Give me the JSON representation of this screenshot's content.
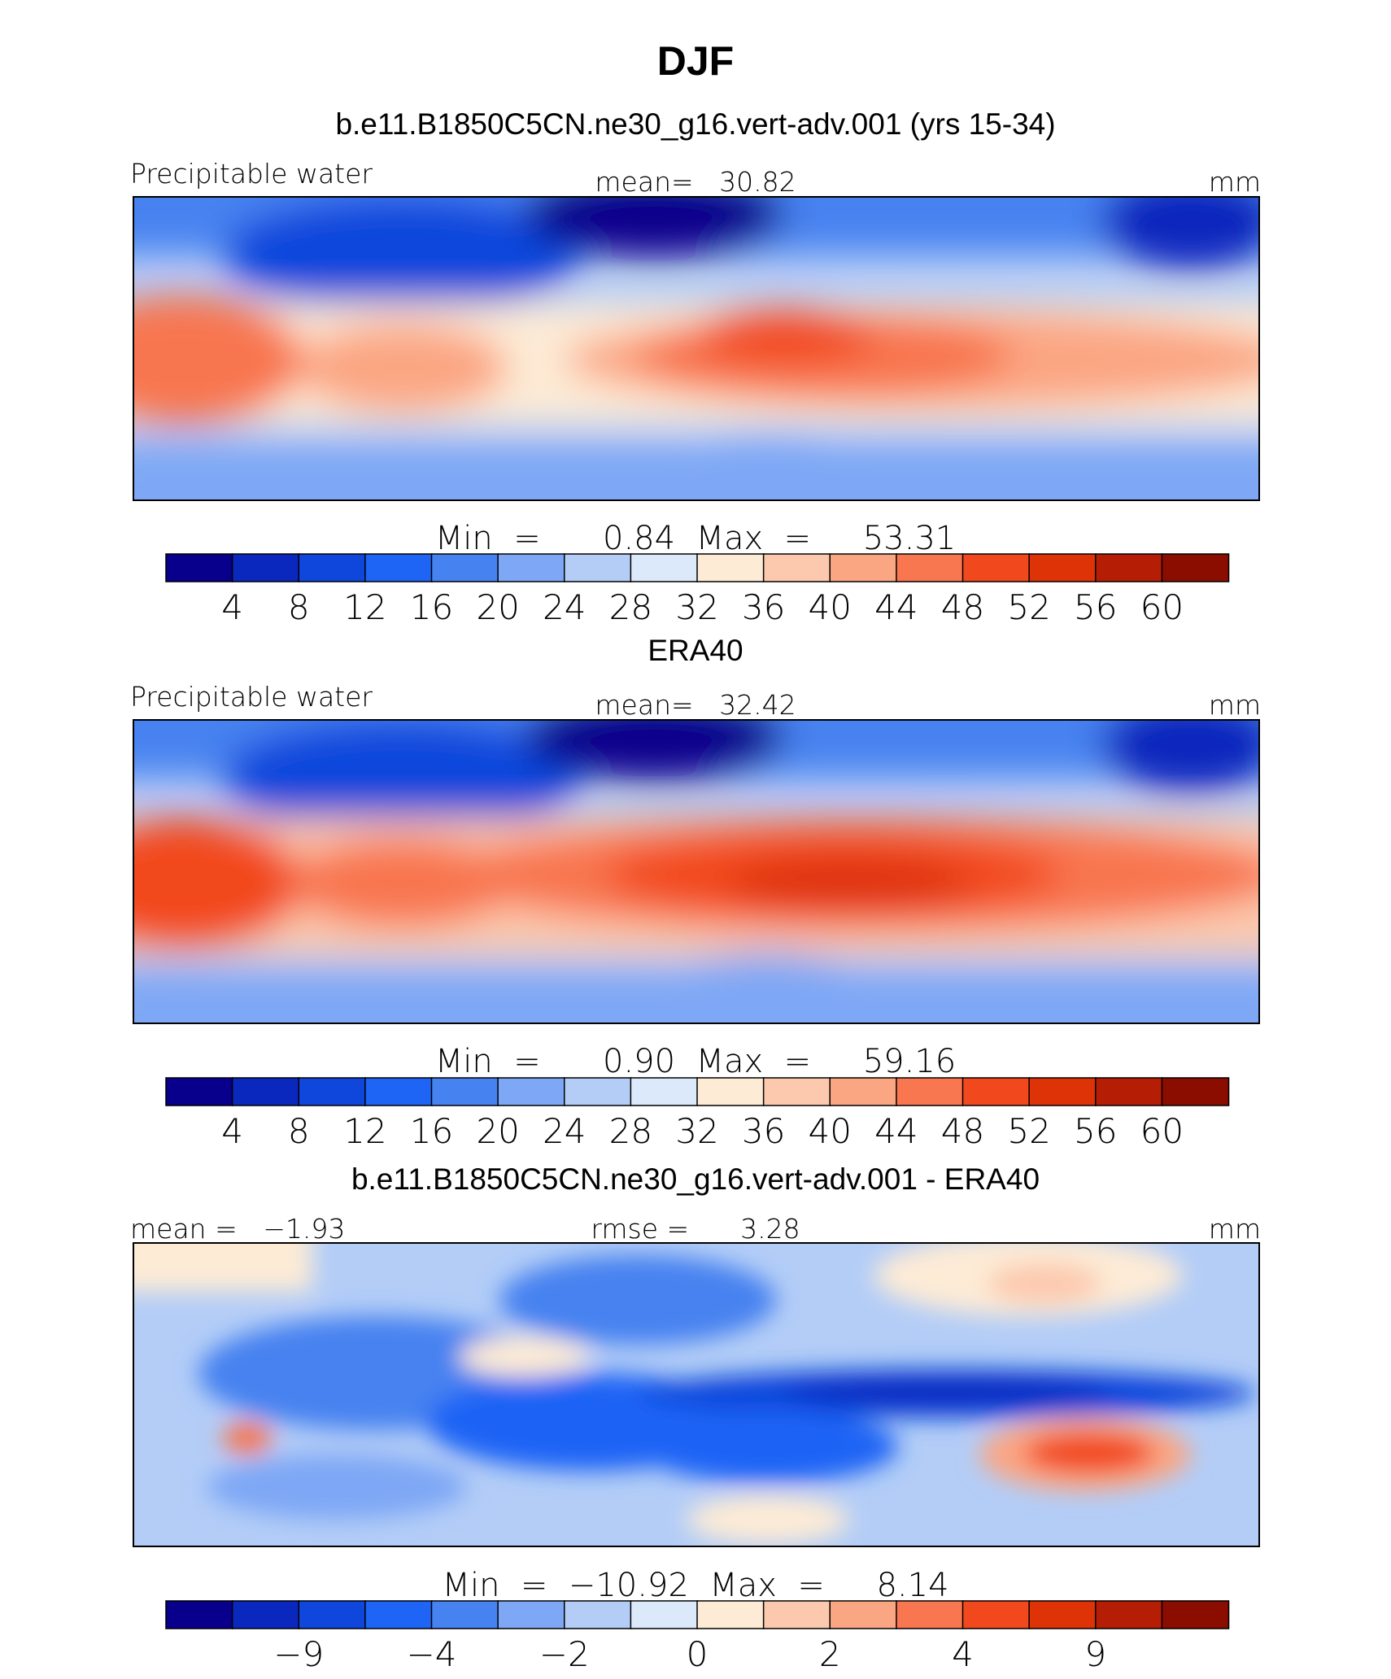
{
  "figure_title": "DJF",
  "colors": [
    "#08008c",
    "#0a28be",
    "#0f46dc",
    "#1e64f5",
    "#4682f0",
    "#7ea7f5",
    "#b3cdf7",
    "#dbe9fb",
    "#fdebd6",
    "#fcc9ae",
    "#fba683",
    "#f87650",
    "#f2481e",
    "#de3207",
    "#b51e05",
    "#8a0d00"
  ],
  "chart_data": [
    {
      "type": "heatmap",
      "title": "b.e11.B1850C5CN.ne30_g16.vert-adv.001 (yrs 15-34)",
      "left_label": "Precipitable water",
      "center_label": "mean=   30.82",
      "units": "mm",
      "minmax_label": "Min  =      0.84  Max  =     53.31",
      "mean": 30.82,
      "min": 0.84,
      "max": 53.31,
      "colorbar_levels": [
        4,
        8,
        12,
        16,
        20,
        24,
        28,
        32,
        36,
        40,
        44,
        48,
        52,
        56,
        60
      ],
      "colorbar_tick_labels": [
        "4",
        "8",
        "12",
        "16",
        "20",
        "24",
        "28",
        "32",
        "36",
        "40",
        "44",
        "48",
        "52",
        "56",
        "60"
      ]
    },
    {
      "type": "heatmap",
      "title": "ERA40",
      "left_label": "Precipitable water",
      "center_label": "mean=   32.42",
      "units": "mm",
      "minmax_label": "Min  =      0.90  Max  =     59.16",
      "mean": 32.42,
      "min": 0.9,
      "max": 59.16,
      "colorbar_levels": [
        4,
        8,
        12,
        16,
        20,
        24,
        28,
        32,
        36,
        40,
        44,
        48,
        52,
        56,
        60
      ],
      "colorbar_tick_labels": [
        "4",
        "8",
        "12",
        "16",
        "20",
        "24",
        "28",
        "32",
        "36",
        "40",
        "44",
        "48",
        "52",
        "56",
        "60"
      ]
    },
    {
      "type": "heatmap",
      "title": "b.e11.B1850C5CN.ne30_g16.vert-adv.001 - ERA40",
      "left_label": "mean =   −1.93",
      "center_label": "rmse =      3.28",
      "units": "mm",
      "minmax_label": "Min  =  −10.92  Max  =     8.14",
      "mean": -1.93,
      "rmse": 3.28,
      "min": -10.92,
      "max": 8.14,
      "colorbar_levels": [
        -9,
        -4,
        -2,
        0,
        2,
        4,
        9
      ],
      "colorbar_tick_labels": [
        "−9",
        "−4",
        "−2",
        "0",
        "2",
        "4",
        "9"
      ]
    }
  ]
}
